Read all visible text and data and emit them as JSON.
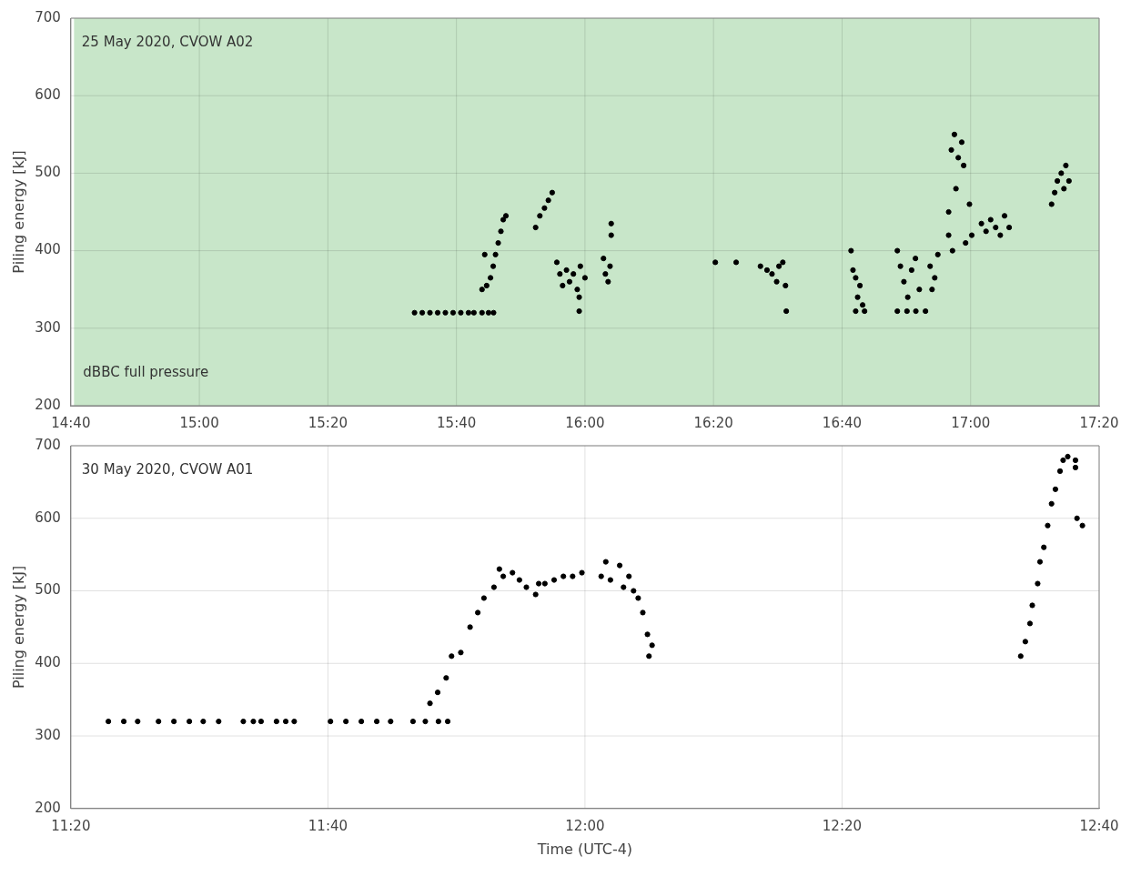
{
  "chart_data": [
    {
      "type": "scatter",
      "ylabel": "Piling energy [kJ]",
      "annotations": [
        "25 May 2020, CVOW A02"
      ],
      "xlim": [
        14.6667,
        17.3333
      ],
      "xticks": [
        {
          "value": 14.6667,
          "label": "14:40"
        },
        {
          "value": 15,
          "label": "15:00"
        },
        {
          "value": 15.3333,
          "label": "15:20"
        },
        {
          "value": 15.6667,
          "label": "15:40"
        },
        {
          "value": 16,
          "label": "16:00"
        },
        {
          "value": 16.3333,
          "label": "16:20"
        },
        {
          "value": 16.6667,
          "label": "16:40"
        },
        {
          "value": 17,
          "label": "17:00"
        },
        {
          "value": 17.3333,
          "label": "17:20"
        }
      ],
      "ylim": [
        200,
        700
      ],
      "yticks": [
        200,
        300,
        400,
        500,
        600,
        700
      ],
      "grid": true,
      "marker": "circle",
      "legend": false,
      "bands": [
        {
          "axis": "x",
          "from": 14.675,
          "to": 17.3333,
          "label": "dBBC full pressure",
          "color": "#c8e6c9"
        }
      ],
      "series": [
        {
          "color": "#000000",
          "x": [
            15.558,
            15.578,
            15.598,
            15.618,
            15.638,
            15.658,
            15.678,
            15.698,
            15.712,
            15.733,
            15.75,
            15.763,
            15.733,
            15.745,
            15.755,
            15.762,
            15.768,
            15.775,
            15.782,
            15.788,
            15.795,
            15.74,
            15.872,
            15.883,
            15.895,
            15.905,
            15.915,
            15.927,
            15.935,
            15.942,
            15.952,
            15.96,
            15.97,
            15.98,
            15.988,
            16.0,
            15.985,
            15.985,
            16.048,
            16.053,
            16.06,
            16.065,
            16.068,
            16.068,
            16.338,
            16.392,
            16.455,
            16.472,
            16.485,
            16.497,
            16.503,
            16.513,
            16.52,
            16.522,
            16.69,
            16.695,
            16.702,
            16.707,
            16.713,
            16.72,
            16.702,
            16.725,
            16.81,
            16.818,
            16.827,
            16.837,
            16.847,
            16.857,
            16.867,
            16.81,
            16.835,
            16.858,
            16.883,
            16.895,
            16.907,
            16.915,
            16.9,
            16.943,
            16.95,
            16.958,
            16.968,
            16.977,
            16.982,
            16.962,
            16.953,
            16.943,
            16.987,
            16.997,
            17.003,
            17.028,
            17.04,
            17.052,
            17.065,
            17.077,
            17.088,
            17.1,
            17.21,
            17.218,
            17.225,
            17.235,
            17.242,
            17.247,
            17.255
          ],
          "values": [
            320,
            320,
            320,
            320,
            320,
            320,
            320,
            320,
            320,
            320,
            320,
            320,
            350,
            355,
            365,
            380,
            395,
            410,
            425,
            440,
            445,
            395,
            430,
            445,
            455,
            465,
            475,
            385,
            370,
            355,
            375,
            360,
            370,
            350,
            380,
            365,
            340,
            322,
            390,
            370,
            360,
            380,
            420,
            435,
            385,
            385,
            380,
            375,
            370,
            360,
            380,
            385,
            355,
            322,
            400,
            375,
            365,
            340,
            355,
            330,
            322,
            322,
            400,
            380,
            360,
            340,
            375,
            390,
            350,
            322,
            322,
            322,
            322,
            380,
            365,
            395,
            350,
            450,
            530,
            550,
            520,
            540,
            510,
            480,
            400,
            420,
            410,
            460,
            420,
            435,
            425,
            440,
            430,
            420,
            445,
            430,
            460,
            475,
            490,
            500,
            480,
            510,
            490
          ]
        }
      ]
    },
    {
      "type": "scatter",
      "ylabel": "Piling energy [kJ]",
      "xlabel": "Time (UTC-4)",
      "annotations": [
        "30 May 2020, CVOW A01"
      ],
      "xlim": [
        11.3333,
        12.6667
      ],
      "xticks": [
        {
          "value": 11.3333,
          "label": "11:20"
        },
        {
          "value": 11.6667,
          "label": "11:40"
        },
        {
          "value": 12,
          "label": "12:00"
        },
        {
          "value": 12.3333,
          "label": "12:20"
        },
        {
          "value": 12.6667,
          "label": "12:40"
        }
      ],
      "ylim": [
        200,
        700
      ],
      "yticks": [
        200,
        300,
        400,
        500,
        600,
        700
      ],
      "grid": true,
      "marker": "circle",
      "legend": false,
      "series": [
        {
          "color": "#000000",
          "x": [
            11.382,
            11.402,
            11.42,
            11.447,
            11.467,
            11.487,
            11.505,
            11.525,
            11.557,
            11.57,
            11.58,
            11.6,
            11.612,
            11.623,
            11.67,
            11.69,
            11.71,
            11.73,
            11.748,
            11.777,
            11.793,
            11.81,
            11.822,
            11.799,
            11.809,
            11.82,
            11.827,
            11.839,
            11.851,
            11.861,
            11.869,
            11.882,
            11.894,
            11.906,
            11.915,
            11.924,
            11.936,
            11.948,
            11.96,
            11.972,
            11.984,
            11.996,
            12.021,
            12.033,
            12.045,
            12.057,
            12.063,
            12.069,
            12.075,
            12.081,
            12.083,
            12.087,
            11.889,
            11.94,
            12.05,
            12.027,
            12.565,
            12.571,
            12.577,
            12.58,
            12.587,
            12.59,
            12.595,
            12.6,
            12.605,
            12.61,
            12.616,
            12.62,
            12.626,
            12.636,
            12.636,
            12.638,
            12.645
          ],
          "values": [
            320,
            320,
            320,
            320,
            320,
            320,
            320,
            320,
            320,
            320,
            320,
            320,
            320,
            320,
            320,
            320,
            320,
            320,
            320,
            320,
            320,
            320,
            320,
            345,
            360,
            380,
            410,
            415,
            450,
            470,
            490,
            505,
            520,
            525,
            515,
            505,
            495,
            510,
            515,
            520,
            520,
            525,
            520,
            515,
            535,
            520,
            500,
            490,
            470,
            440,
            410,
            425,
            530,
            510,
            505,
            540,
            410,
            430,
            455,
            480,
            510,
            540,
            560,
            590,
            620,
            640,
            665,
            680,
            685,
            680,
            670,
            600,
            590
          ]
        }
      ]
    }
  ]
}
